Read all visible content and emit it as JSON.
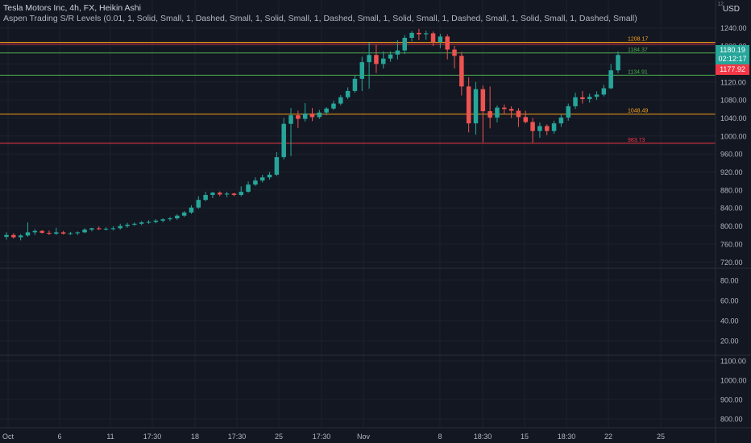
{
  "legend": {
    "symbol": "Tesla Motors Inc, 4h, FX, Heikin Ashi",
    "indicator": "Aspen Trading S/R Levels (0.01, 1, Solid, Small, 1, Dashed, Small, 1, Solid, Small, 1, Dashed, Small, 1, Solid, Small, 1, Dashed, Small, 1, Solid, Small, 1, Dashed, Small)"
  },
  "currency": "USD",
  "currency_sup": "12",
  "price_tags": {
    "last": "1180.19",
    "countdown": "02:12:17",
    "level": "1177.92"
  },
  "colors": {
    "bull": "#26a69a",
    "bear": "#ef5350",
    "background": "#131722",
    "grid": "#1e222d",
    "axis_text": "#b2b5be",
    "orange_level": "#f7a21b",
    "green_level": "#4caf50",
    "red_level": "#f23645"
  },
  "chart_data": {
    "type": "candlestick",
    "chart_style": "Heikin Ashi",
    "interval": "4h",
    "grid": true,
    "y_axis": {
      "ticks": [
        "1240.00",
        "1200.00",
        "1160.00",
        "1120.00",
        "1080.00",
        "1040.00",
        "1000.00",
        "960.00",
        "920.00",
        "880.00",
        "840.00",
        "800.00",
        "760.00",
        "720.00"
      ],
      "ylim": [
        708,
        1252
      ]
    },
    "x_axis": {
      "ticks": [
        "Oct",
        "6",
        "11",
        "17:30",
        "18",
        "17:30",
        "25",
        "17:30",
        "Nov",
        "8",
        "18:30",
        "15",
        "18:30",
        "22",
        "25"
      ]
    },
    "levels": [
      {
        "value": 1208.17,
        "label": "1208.17",
        "color": "#f7a21b"
      },
      {
        "value": 1204.0,
        "label": "",
        "color": "#f23645"
      },
      {
        "value": 1184.37,
        "label": "1184.37",
        "color": "#4caf50"
      },
      {
        "value": 1134.91,
        "label": "1134.91",
        "color": "#4caf50"
      },
      {
        "value": 1048.49,
        "label": "1048.49",
        "color": "#f7a21b"
      },
      {
        "value": 983.73,
        "label": "983.73",
        "color": "#f23645"
      }
    ],
    "candles": [
      {
        "o": 776,
        "h": 786,
        "l": 770,
        "c": 780
      },
      {
        "o": 780,
        "h": 784,
        "l": 772,
        "c": 775
      },
      {
        "o": 775,
        "h": 782,
        "l": 768,
        "c": 779
      },
      {
        "o": 779,
        "h": 808,
        "l": 776,
        "c": 786
      },
      {
        "o": 786,
        "h": 793,
        "l": 780,
        "c": 789
      },
      {
        "o": 789,
        "h": 791,
        "l": 783,
        "c": 785
      },
      {
        "o": 785,
        "h": 790,
        "l": 780,
        "c": 783
      },
      {
        "o": 783,
        "h": 796,
        "l": 780,
        "c": 786
      },
      {
        "o": 786,
        "h": 789,
        "l": 781,
        "c": 783
      },
      {
        "o": 783,
        "h": 787,
        "l": 780,
        "c": 784
      },
      {
        "o": 784,
        "h": 788,
        "l": 780,
        "c": 786
      },
      {
        "o": 786,
        "h": 795,
        "l": 784,
        "c": 792
      },
      {
        "o": 792,
        "h": 796,
        "l": 788,
        "c": 795
      },
      {
        "o": 795,
        "h": 799,
        "l": 791,
        "c": 793
      },
      {
        "o": 793,
        "h": 797,
        "l": 790,
        "c": 794
      },
      {
        "o": 794,
        "h": 799,
        "l": 790,
        "c": 795
      },
      {
        "o": 795,
        "h": 805,
        "l": 792,
        "c": 800
      },
      {
        "o": 800,
        "h": 807,
        "l": 796,
        "c": 803
      },
      {
        "o": 803,
        "h": 808,
        "l": 800,
        "c": 805
      },
      {
        "o": 805,
        "h": 811,
        "l": 802,
        "c": 808
      },
      {
        "o": 808,
        "h": 813,
        "l": 805,
        "c": 809
      },
      {
        "o": 809,
        "h": 815,
        "l": 806,
        "c": 812
      },
      {
        "o": 812,
        "h": 817,
        "l": 808,
        "c": 815
      },
      {
        "o": 815,
        "h": 820,
        "l": 811,
        "c": 817
      },
      {
        "o": 817,
        "h": 826,
        "l": 814,
        "c": 823
      },
      {
        "o": 823,
        "h": 833,
        "l": 820,
        "c": 830
      },
      {
        "o": 830,
        "h": 846,
        "l": 827,
        "c": 841
      },
      {
        "o": 841,
        "h": 866,
        "l": 838,
        "c": 858
      },
      {
        "o": 858,
        "h": 876,
        "l": 855,
        "c": 869
      },
      {
        "o": 869,
        "h": 876,
        "l": 862,
        "c": 874
      },
      {
        "o": 874,
        "h": 877,
        "l": 866,
        "c": 870
      },
      {
        "o": 870,
        "h": 876,
        "l": 864,
        "c": 872
      },
      {
        "o": 872,
        "h": 874,
        "l": 866,
        "c": 869
      },
      {
        "o": 869,
        "h": 888,
        "l": 866,
        "c": 876
      },
      {
        "o": 876,
        "h": 899,
        "l": 874,
        "c": 892
      },
      {
        "o": 892,
        "h": 908,
        "l": 889,
        "c": 901
      },
      {
        "o": 901,
        "h": 914,
        "l": 897,
        "c": 908
      },
      {
        "o": 908,
        "h": 920,
        "l": 903,
        "c": 914
      },
      {
        "o": 914,
        "h": 964,
        "l": 911,
        "c": 953
      },
      {
        "o": 953,
        "h": 1040,
        "l": 948,
        "c": 1027
      },
      {
        "o": 1027,
        "h": 1062,
        "l": 955,
        "c": 1046
      },
      {
        "o": 1046,
        "h": 1056,
        "l": 1018,
        "c": 1038
      },
      {
        "o": 1038,
        "h": 1073,
        "l": 1032,
        "c": 1050
      },
      {
        "o": 1050,
        "h": 1062,
        "l": 1033,
        "c": 1042
      },
      {
        "o": 1042,
        "h": 1058,
        "l": 1038,
        "c": 1052
      },
      {
        "o": 1052,
        "h": 1064,
        "l": 1046,
        "c": 1061
      },
      {
        "o": 1061,
        "h": 1078,
        "l": 1058,
        "c": 1072
      },
      {
        "o": 1072,
        "h": 1091,
        "l": 1068,
        "c": 1086
      },
      {
        "o": 1086,
        "h": 1108,
        "l": 1082,
        "c": 1100
      },
      {
        "o": 1100,
        "h": 1134,
        "l": 1096,
        "c": 1127
      },
      {
        "o": 1127,
        "h": 1176,
        "l": 1100,
        "c": 1164
      },
      {
        "o": 1164,
        "h": 1208,
        "l": 1105,
        "c": 1180
      },
      {
        "o": 1180,
        "h": 1202,
        "l": 1140,
        "c": 1160
      },
      {
        "o": 1160,
        "h": 1188,
        "l": 1150,
        "c": 1172
      },
      {
        "o": 1172,
        "h": 1188,
        "l": 1165,
        "c": 1181
      },
      {
        "o": 1181,
        "h": 1213,
        "l": 1170,
        "c": 1190
      },
      {
        "o": 1190,
        "h": 1224,
        "l": 1182,
        "c": 1218
      },
      {
        "o": 1218,
        "h": 1233,
        "l": 1210,
        "c": 1229
      },
      {
        "o": 1229,
        "h": 1238,
        "l": 1213,
        "c": 1226
      },
      {
        "o": 1226,
        "h": 1234,
        "l": 1214,
        "c": 1228
      },
      {
        "o": 1228,
        "h": 1232,
        "l": 1200,
        "c": 1209
      },
      {
        "o": 1209,
        "h": 1227,
        "l": 1195,
        "c": 1221
      },
      {
        "o": 1221,
        "h": 1226,
        "l": 1170,
        "c": 1192
      },
      {
        "o": 1192,
        "h": 1200,
        "l": 1150,
        "c": 1178
      },
      {
        "o": 1178,
        "h": 1187,
        "l": 1090,
        "c": 1110
      },
      {
        "o": 1110,
        "h": 1130,
        "l": 1008,
        "c": 1028
      },
      {
        "o": 1028,
        "h": 1120,
        "l": 1003,
        "c": 1104
      },
      {
        "o": 1104,
        "h": 1112,
        "l": 986,
        "c": 1055
      },
      {
        "o": 1055,
        "h": 1110,
        "l": 1017,
        "c": 1041
      },
      {
        "o": 1041,
        "h": 1068,
        "l": 1030,
        "c": 1063
      },
      {
        "o": 1063,
        "h": 1070,
        "l": 1048,
        "c": 1060
      },
      {
        "o": 1060,
        "h": 1066,
        "l": 1040,
        "c": 1056
      },
      {
        "o": 1056,
        "h": 1062,
        "l": 1020,
        "c": 1042
      },
      {
        "o": 1042,
        "h": 1056,
        "l": 1028,
        "c": 1031
      },
      {
        "o": 1031,
        "h": 1040,
        "l": 985,
        "c": 1011
      },
      {
        "o": 1011,
        "h": 1030,
        "l": 996,
        "c": 1022
      },
      {
        "o": 1022,
        "h": 1026,
        "l": 1002,
        "c": 1011
      },
      {
        "o": 1011,
        "h": 1034,
        "l": 1005,
        "c": 1028
      },
      {
        "o": 1028,
        "h": 1048,
        "l": 1020,
        "c": 1041
      },
      {
        "o": 1041,
        "h": 1072,
        "l": 1034,
        "c": 1066
      },
      {
        "o": 1066,
        "h": 1096,
        "l": 1060,
        "c": 1086
      },
      {
        "o": 1086,
        "h": 1100,
        "l": 1072,
        "c": 1082
      },
      {
        "o": 1082,
        "h": 1094,
        "l": 1074,
        "c": 1087
      },
      {
        "o": 1087,
        "h": 1099,
        "l": 1080,
        "c": 1092
      },
      {
        "o": 1092,
        "h": 1114,
        "l": 1088,
        "c": 1106
      },
      {
        "o": 1106,
        "h": 1160,
        "l": 1104,
        "c": 1146
      },
      {
        "o": 1146,
        "h": 1188,
        "l": 1140,
        "c": 1180
      }
    ]
  },
  "panes": {
    "pane2_ticks": [
      "80.00",
      "60.00",
      "40.00",
      "20.00"
    ],
    "pane3_ticks": [
      "1100.00",
      "1000.00",
      "900.00",
      "800.00"
    ]
  }
}
